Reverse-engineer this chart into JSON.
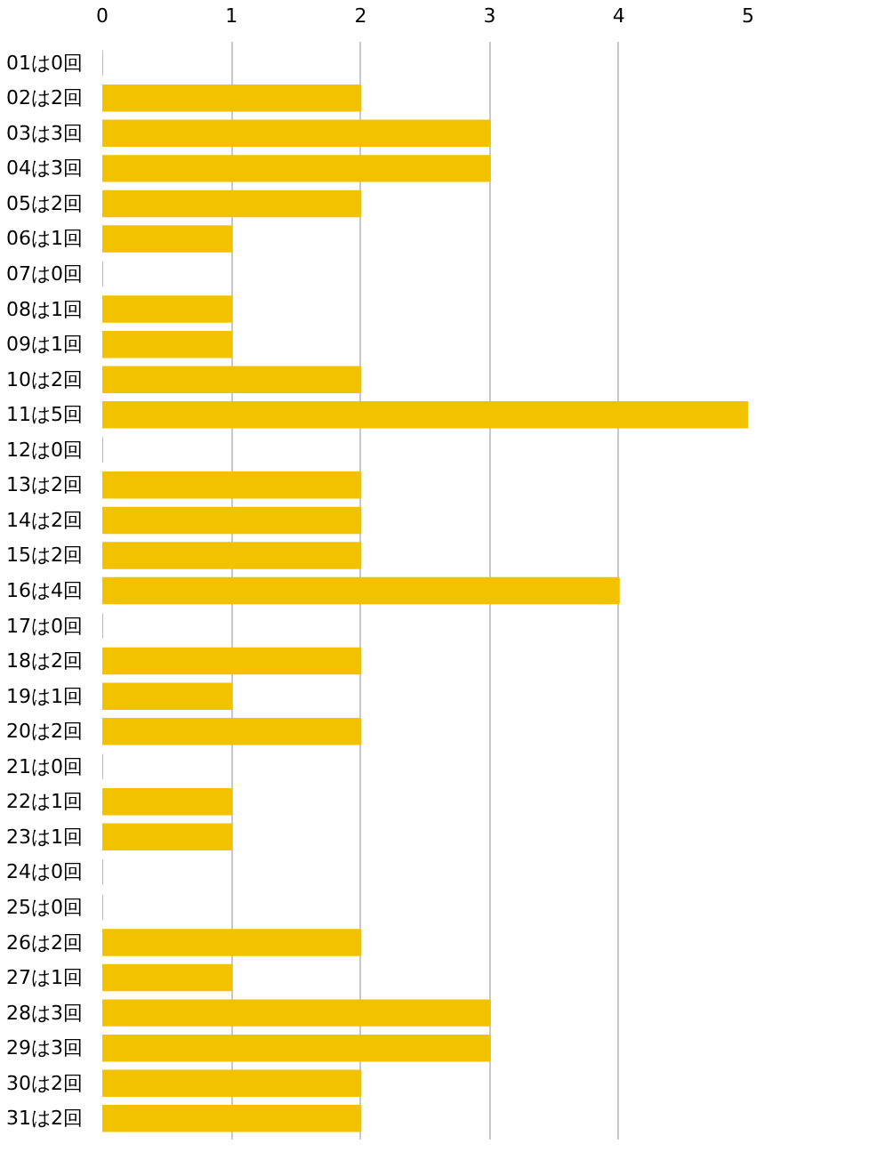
{
  "chart_data": {
    "type": "bar",
    "orientation": "horizontal",
    "categories": [
      "01は0回",
      "02は2回",
      "03は3回",
      "04は3回",
      "05は2回",
      "06は1回",
      "07は0回",
      "08は1回",
      "09は1回",
      "10は2回",
      "11は5回",
      "12は0回",
      "13は2回",
      "14は2回",
      "15は2回",
      "16は4回",
      "17は0回",
      "18は2回",
      "19は1回",
      "20は2回",
      "21は0回",
      "22は1回",
      "23は1回",
      "24は0回",
      "25は0回",
      "26は2回",
      "27は1回",
      "28は3回",
      "29は3回",
      "30は2回",
      "31は2回"
    ],
    "values": [
      0,
      2,
      3,
      3,
      2,
      1,
      0,
      1,
      1,
      2,
      5,
      0,
      2,
      2,
      2,
      4,
      0,
      2,
      1,
      2,
      0,
      1,
      1,
      0,
      0,
      2,
      1,
      3,
      3,
      2,
      2
    ],
    "color": "#f2c200",
    "xlim": [
      0,
      5
    ],
    "xticks": [
      0,
      1,
      2,
      3,
      4,
      5
    ],
    "grid": "x"
  }
}
